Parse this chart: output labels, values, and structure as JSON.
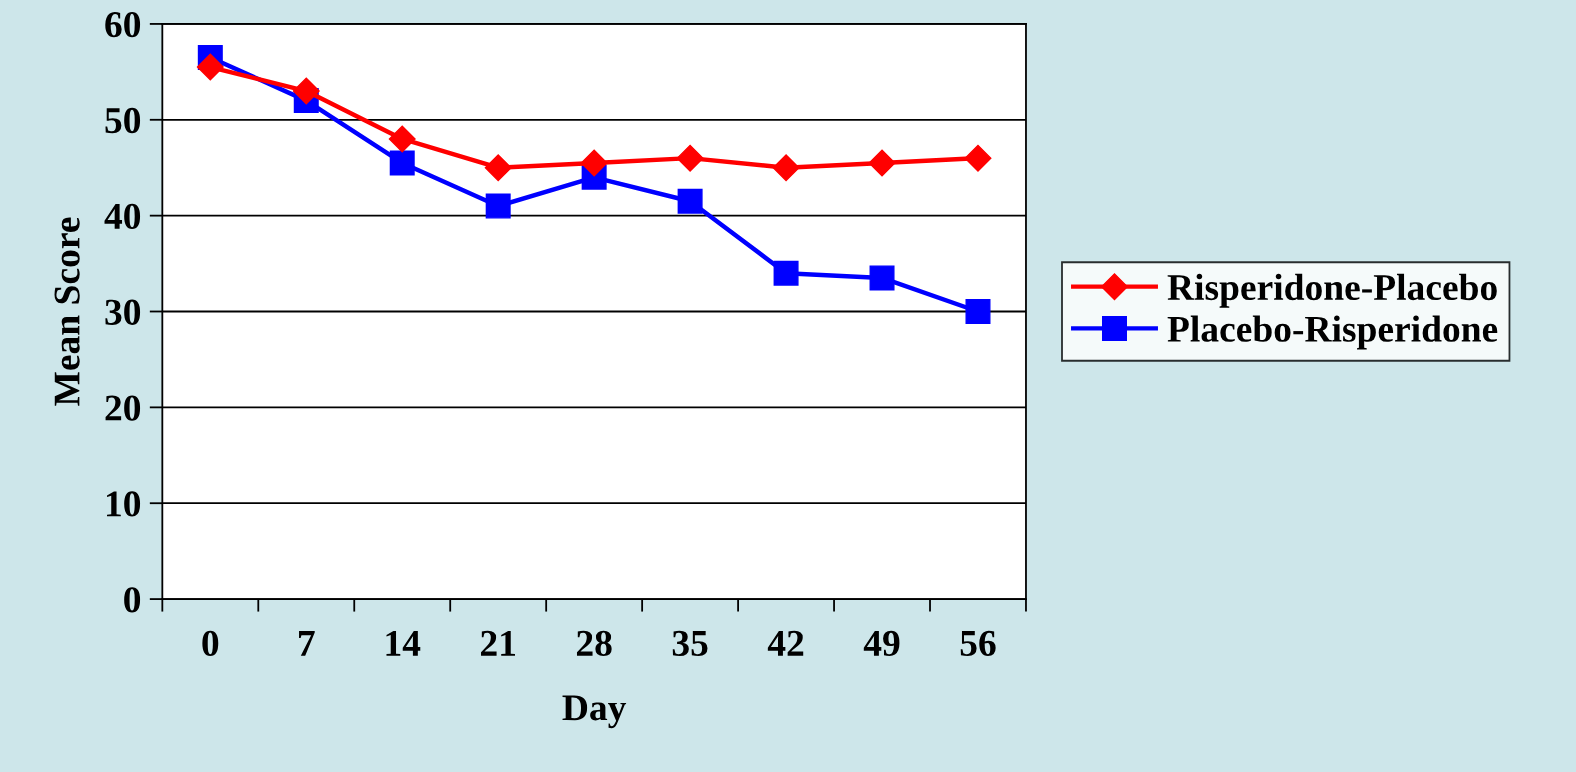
{
  "chart_data": {
    "type": "line",
    "xlabel": "Day",
    "ylabel": "Mean Score",
    "categories": [
      "0",
      "7",
      "14",
      "21",
      "28",
      "35",
      "42",
      "49",
      "56"
    ],
    "series": [
      {
        "name": "Risperidone-Placebo",
        "color": "#ff0000",
        "marker": "diamond",
        "values": [
          55.5,
          53,
          48,
          45,
          45.5,
          46,
          45,
          45.5,
          46
        ]
      },
      {
        "name": "Placebo-Risperidone",
        "color": "#0000ff",
        "marker": "square",
        "values": [
          56.5,
          52,
          45.5,
          41,
          44,
          41.5,
          34,
          33.5,
          30
        ]
      }
    ],
    "ylim": [
      0,
      60
    ],
    "yticks": [
      0,
      10,
      20,
      30,
      40,
      50,
      60
    ],
    "grid": "y",
    "legend": "right",
    "line_style": "solid"
  }
}
